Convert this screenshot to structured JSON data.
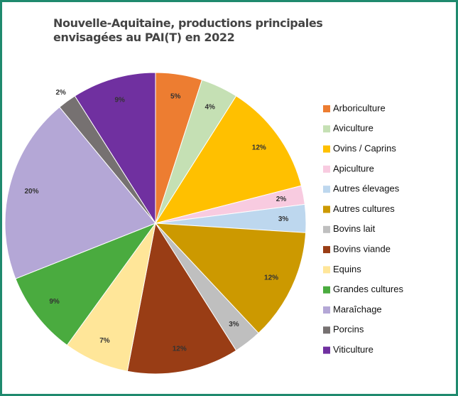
{
  "chart_data": {
    "type": "pie",
    "title": "Nouvelle-Aquitaine, productions principales envisagées au PAI(T) en 2022",
    "categories": [
      "Arboriculture",
      "Aviculture",
      "Ovins / Caprins",
      "Apiculture",
      "Autres élevages",
      "Autres cultures",
      "Bovins lait",
      "Bovins viande",
      "Equins",
      "Grandes cultures",
      "Maraîchage",
      "Porcins",
      "Viticulture"
    ],
    "values": [
      5,
      4,
      12,
      2,
      3,
      12,
      3,
      12,
      7,
      9,
      20,
      2,
      9
    ],
    "value_labels": [
      "5%",
      "4%",
      "12%",
      "2%",
      "3%",
      "12%",
      "3%",
      "12%",
      "7%",
      "9%",
      "20%",
      "2%",
      "9%"
    ],
    "colors": [
      "#ed7d31",
      "#c5e0b4",
      "#ffc000",
      "#f8cbe0",
      "#bdd7ee",
      "#cc9900",
      "#bfbfbf",
      "#993d15",
      "#ffe699",
      "#4aab3f",
      "#b4a7d6",
      "#767171",
      "#7030a0"
    ],
    "legend": "right"
  }
}
